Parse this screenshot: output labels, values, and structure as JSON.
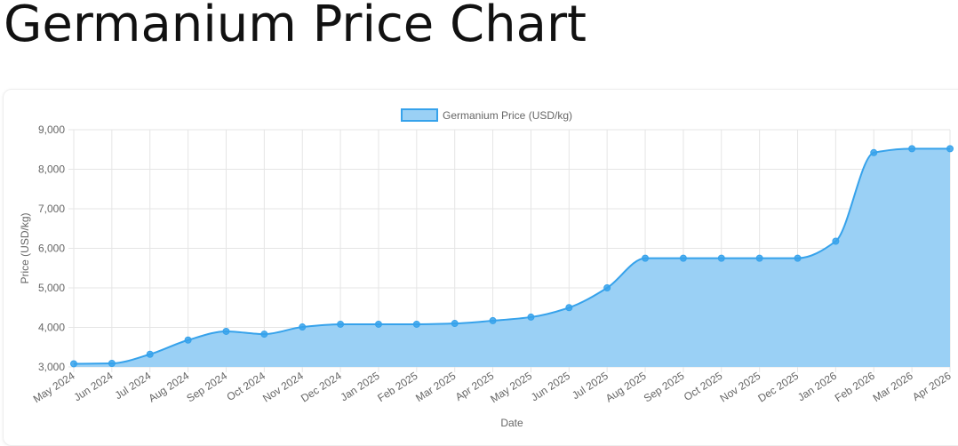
{
  "page": {
    "title": "Germanium Price Chart"
  },
  "colors": {
    "line": "#36a2eb",
    "fill": "#9ad0f5",
    "grid": "#e5e5e5",
    "text": "#666666"
  },
  "chart_data": {
    "type": "area",
    "title": "",
    "xlabel": "Date",
    "ylabel": "Price (USD/kg)",
    "ylim": [
      3000,
      9000
    ],
    "yticks": [
      "3,000",
      "4,000",
      "5,000",
      "6,000",
      "7,000",
      "8,000",
      "9,000"
    ],
    "ytick_values": [
      3000,
      4000,
      5000,
      6000,
      7000,
      8000,
      9000
    ],
    "grid": true,
    "legend": "top-center",
    "categories": [
      "May 2024",
      "Jun 2024",
      "Jul 2024",
      "Aug 2024",
      "Sep 2024",
      "Oct 2024",
      "Nov 2024",
      "Dec 2024",
      "Jan 2025",
      "Feb 2025",
      "Mar 2025",
      "Apr 2025",
      "May 2025",
      "Jun 2025",
      "Jul 2025",
      "Aug 2025",
      "Sep 2025",
      "Oct 2025",
      "Nov 2025",
      "Dec 2025",
      "Jan 2026",
      "Feb 2026",
      "Mar 2026",
      "Apr 2026"
    ],
    "series": [
      {
        "name": "Germanium Price (USD/kg)",
        "values": [
          3080,
          3090,
          3320,
          3680,
          3900,
          3830,
          4010,
          4080,
          4080,
          4080,
          4100,
          4170,
          4260,
          4500,
          5000,
          5750,
          5750,
          5750,
          5750,
          5750,
          6180,
          8420,
          8520,
          8520
        ]
      }
    ]
  }
}
